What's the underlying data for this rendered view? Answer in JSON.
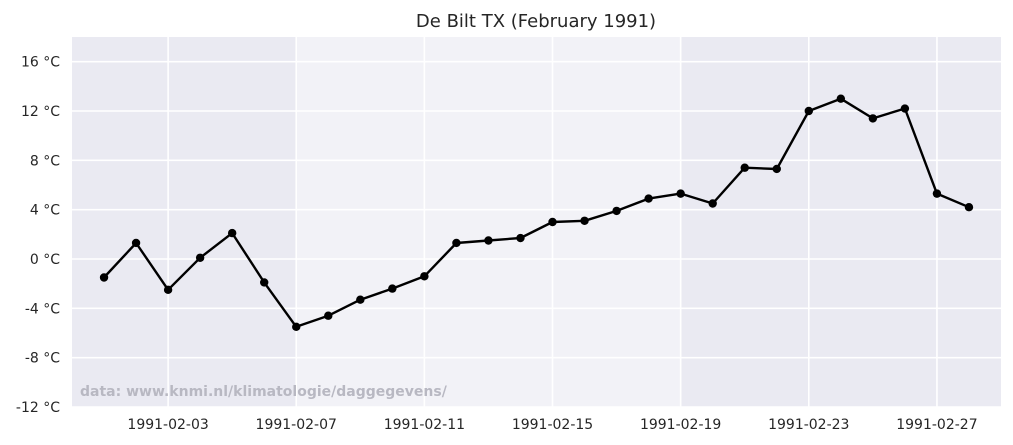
{
  "chart_data": {
    "type": "line",
    "title": "De Bilt TX (February 1991)",
    "xlabel": "",
    "ylabel": "",
    "y_unit": "°C",
    "ylim": [
      -12,
      18
    ],
    "xlim": [
      "1991-01-31",
      "1991-03-01"
    ],
    "yticks": [
      -12,
      -8,
      -4,
      0,
      4,
      8,
      12,
      16
    ],
    "ytick_labels": [
      "-12 °C",
      "-8 °C",
      "-4 °C",
      "0 °C",
      "4 °C",
      "8 °C",
      "12 °C",
      "16 °C"
    ],
    "xticks": [
      "1991-02-03",
      "1991-02-07",
      "1991-02-11",
      "1991-02-15",
      "1991-02-19",
      "1991-02-23",
      "1991-02-27"
    ],
    "grid": true,
    "line_color": "#000000",
    "background_colors": {
      "weekday": "#eaeaf2",
      "weekend": "#f2f2f7",
      "grid": "#ffffff"
    },
    "shaded_bands": [
      [
        "1991-01-31",
        "1991-02-07"
      ],
      [
        "1991-02-19",
        "1991-03-01"
      ]
    ],
    "x": [
      "1991-02-01",
      "1991-02-02",
      "1991-02-03",
      "1991-02-04",
      "1991-02-05",
      "1991-02-06",
      "1991-02-07",
      "1991-02-08",
      "1991-02-09",
      "1991-02-10",
      "1991-02-11",
      "1991-02-12",
      "1991-02-13",
      "1991-02-14",
      "1991-02-15",
      "1991-02-16",
      "1991-02-17",
      "1991-02-18",
      "1991-02-19",
      "1991-02-20",
      "1991-02-21",
      "1991-02-22",
      "1991-02-23",
      "1991-02-24",
      "1991-02-25",
      "1991-02-26",
      "1991-02-27",
      "1991-02-28"
    ],
    "series": [
      {
        "values": [
          -1.5,
          1.3,
          -2.5,
          0.1,
          2.1,
          -1.9,
          -5.5,
          -4.6,
          -3.3,
          -2.4,
          -1.4,
          1.3,
          1.5,
          1.7,
          3.0,
          3.1,
          3.9,
          4.9,
          5.3,
          4.5,
          7.4,
          7.3,
          12.0,
          13.0,
          11.4,
          12.2,
          5.3,
          4.2
        ]
      }
    ],
    "annotation": "data: www.knmi.nl/klimatologie/daggegevens/"
  }
}
